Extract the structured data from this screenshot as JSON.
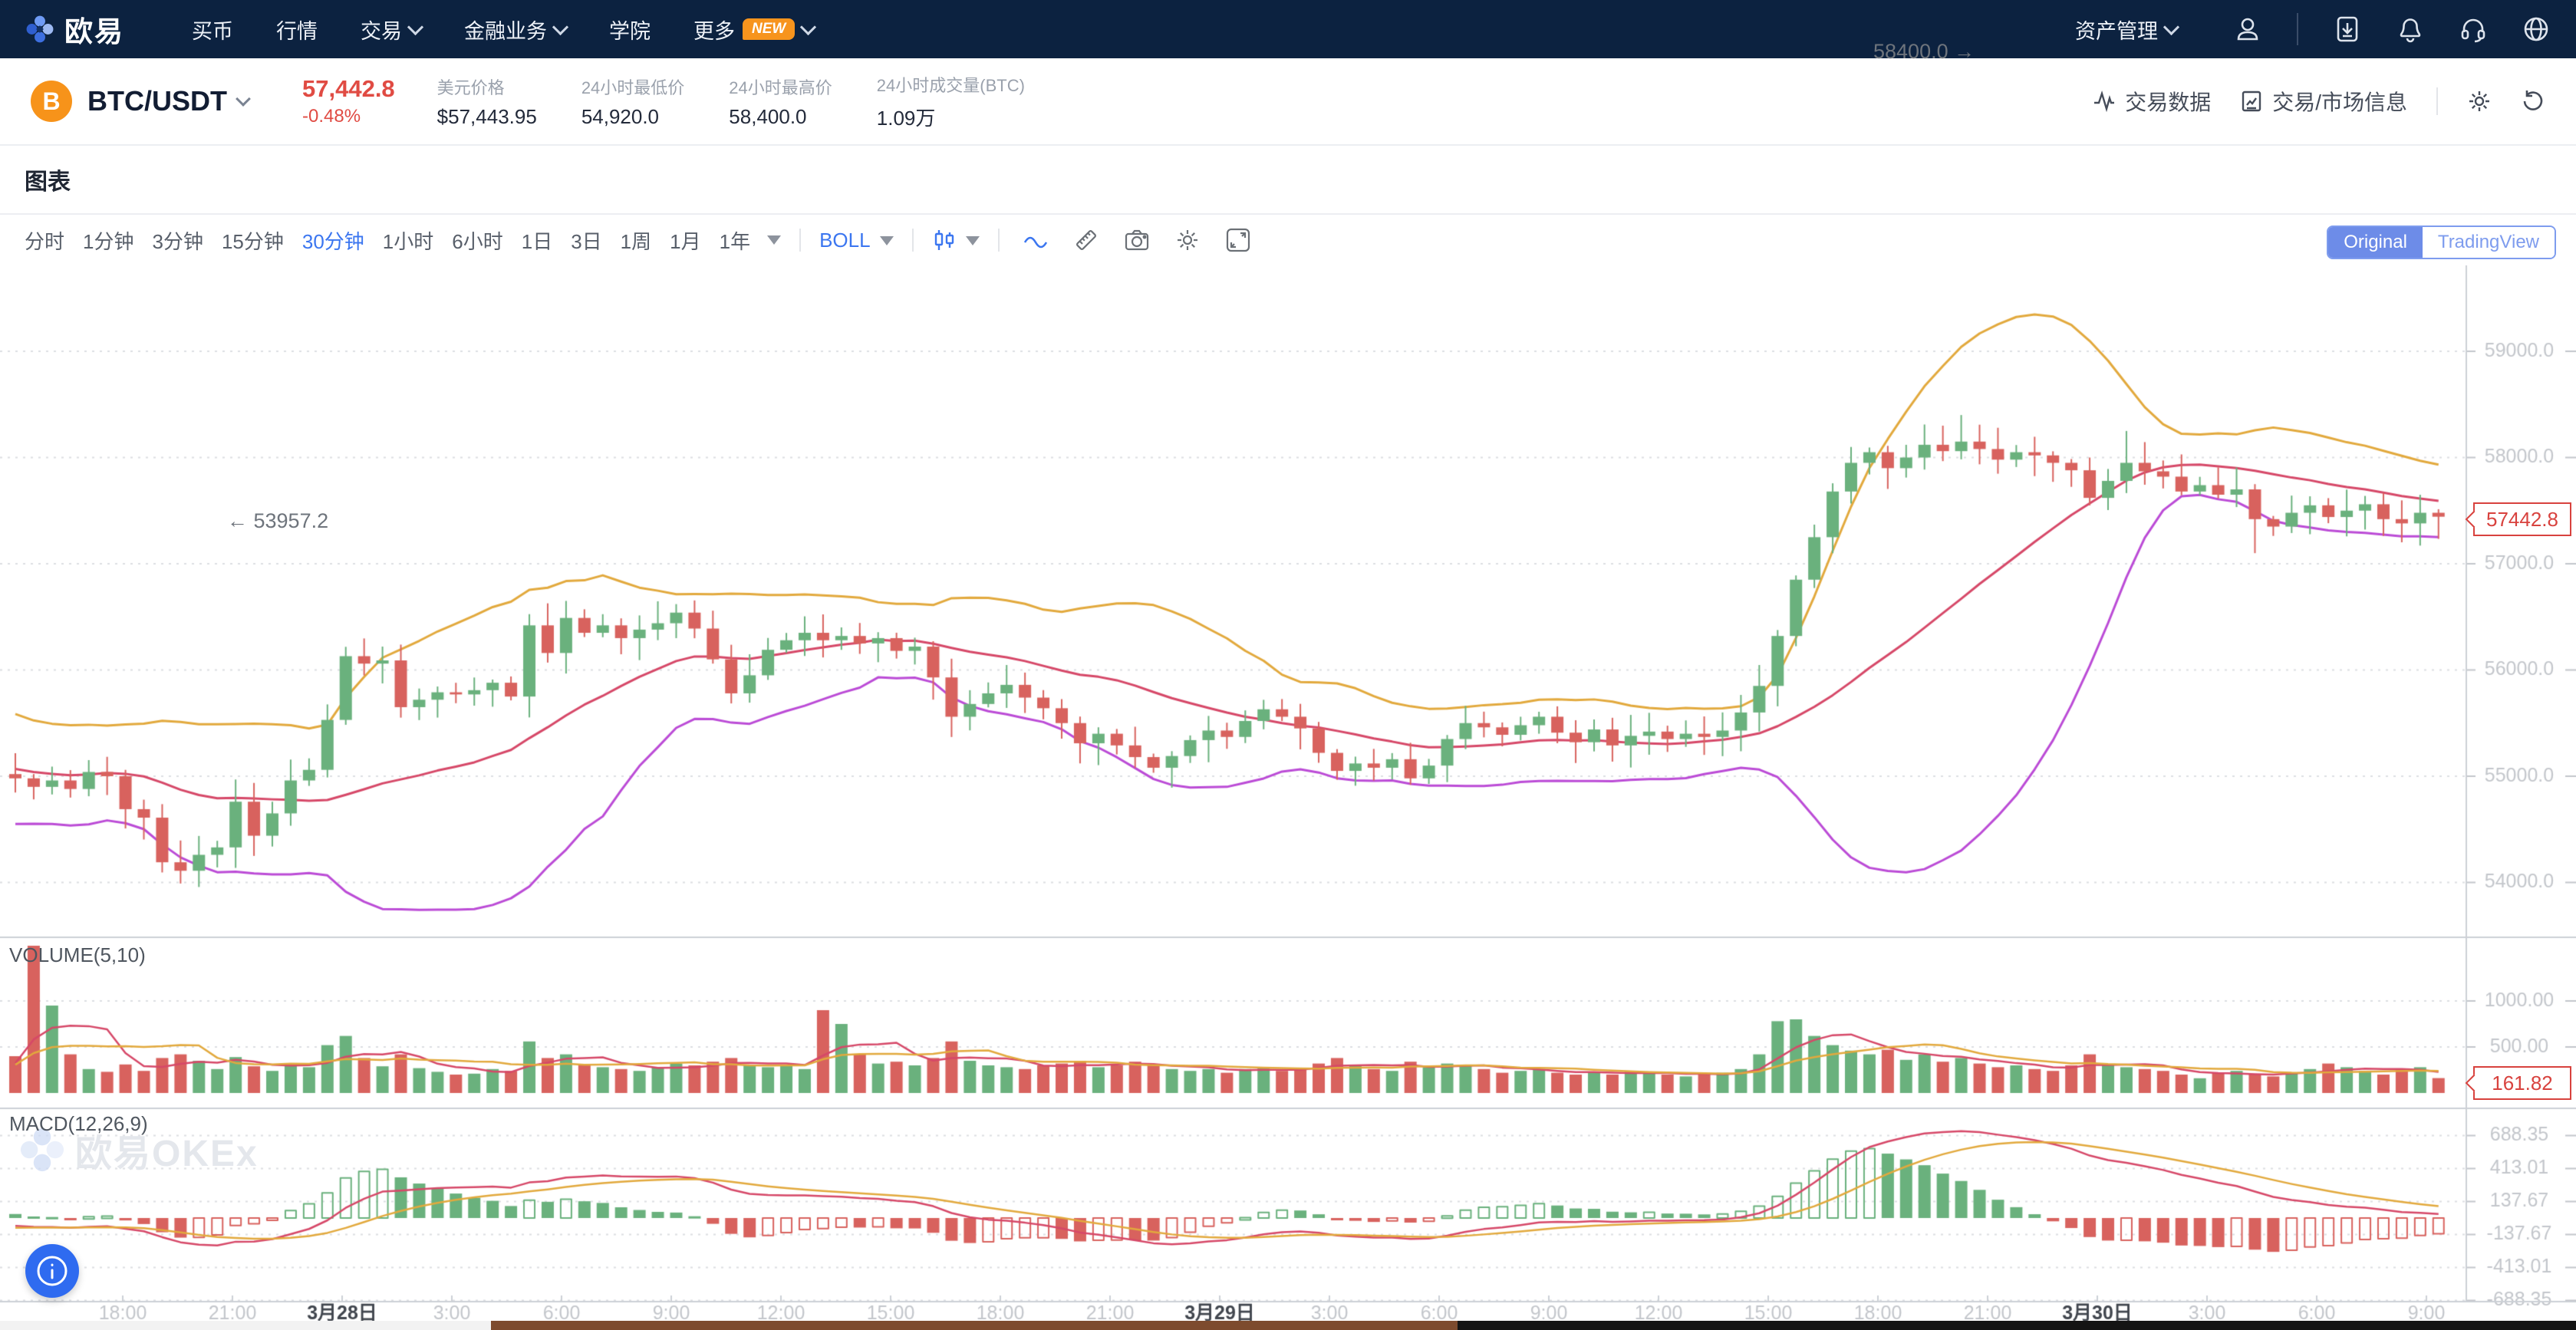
{
  "nav": {
    "brand": "欧易",
    "items": [
      {
        "label": "买币"
      },
      {
        "label": "行情"
      },
      {
        "label": "交易",
        "caret": true
      },
      {
        "label": "金融业务",
        "caret": true
      },
      {
        "label": "学院"
      },
      {
        "label": "更多",
        "badge": "NEW",
        "caret": true
      }
    ],
    "right_label": "资产管理",
    "icons": [
      "user-icon",
      "download-icon",
      "bell-icon",
      "headset-icon",
      "globe-icon"
    ]
  },
  "ticker": {
    "coin_symbol": "B",
    "pair": "BTC/USDT",
    "price": "57,442.8",
    "change": "-0.48%",
    "stats": [
      {
        "label": "美元价格",
        "value": "$57,443.95"
      },
      {
        "label": "24小时最低价",
        "value": "54,920.0"
      },
      {
        "label": "24小时最高价",
        "value": "58,400.0"
      },
      {
        "label": "24小时成交量(BTC)",
        "value": "1.09万"
      }
    ],
    "links": [
      {
        "label": "交易数据",
        "icon": "pulse-icon"
      },
      {
        "label": "交易/市场信息",
        "icon": "doc-icon"
      }
    ]
  },
  "section": {
    "title": "图表"
  },
  "toolbar": {
    "timeframes": [
      "分时",
      "1分钟",
      "3分钟",
      "15分钟",
      "30分钟",
      "1小时",
      "6小时",
      "1日",
      "3日",
      "1周",
      "1月",
      "1年"
    ],
    "selected_timeframe": "30分钟",
    "indicator": "BOLL",
    "toggle": {
      "original": "Original",
      "tradingview": "TradingView"
    }
  },
  "chart": {
    "watermark": "欧易OKEx",
    "annotation_high": "58400.0 →",
    "annotation_low": "← 53957.2",
    "price_badge": "57442.8",
    "volume_badge": "161.82",
    "volume_label": "VOLUME(5,10)",
    "macd_label": "MACD(12,26,9)",
    "price_ticks": [
      "59000.0",
      "58000.0",
      "57000.0",
      "56000.0",
      "55000.0",
      "54000.0"
    ],
    "volume_ticks": [
      "1000.00",
      "500.00"
    ],
    "macd_ticks": [
      "688.35",
      "413.01",
      "137.67",
      "-137.67",
      "-413.01",
      "-688.35"
    ],
    "time_labels": [
      {
        "t": "18:00"
      },
      {
        "t": "21:00"
      },
      {
        "t": "3月28日",
        "d": 1
      },
      {
        "t": "3:00"
      },
      {
        "t": "6:00"
      },
      {
        "t": "9:00"
      },
      {
        "t": "12:00"
      },
      {
        "t": "15:00"
      },
      {
        "t": "18:00"
      },
      {
        "t": "21:00"
      },
      {
        "t": "3月29日",
        "d": 1
      },
      {
        "t": "3:00"
      },
      {
        "t": "6:00"
      },
      {
        "t": "9:00"
      },
      {
        "t": "12:00"
      },
      {
        "t": "15:00"
      },
      {
        "t": "18:00"
      },
      {
        "t": "21:00"
      },
      {
        "t": "3月30日",
        "d": 1
      },
      {
        "t": "3:00"
      },
      {
        "t": "6:00"
      },
      {
        "t": "9:00"
      }
    ]
  },
  "chart_data": {
    "type": "candlestick",
    "interval": "30分钟",
    "indicators": [
      "BOLL(20,2)",
      "VOLUME MA(5,10)",
      "MACD(12,26,9)"
    ],
    "ylim_price": [
      53480,
      59810
    ],
    "first_open": 55020,
    "prehistory_closes": [
      55420,
      55480,
      55300,
      55150,
      54900,
      54700,
      54850,
      55100,
      55350,
      55450,
      55250,
      54950,
      54700,
      54550,
      54800,
      55050,
      55250,
      55380,
      55150,
      55020
    ],
    "prehistory_volumes": [
      300,
      280,
      320,
      350,
      400,
      380,
      300,
      280,
      260,
      300,
      320,
      340,
      300,
      280,
      260,
      280,
      300,
      320,
      300,
      290
    ],
    "closes": [
      54980,
      54900,
      54960,
      54880,
      55040,
      55000,
      54690,
      54610,
      54190,
      54110,
      54260,
      54330,
      54760,
      54440,
      54650,
      54960,
      55060,
      55530,
      56130,
      56060,
      56090,
      55650,
      55720,
      55790,
      55770,
      55810,
      55880,
      55750,
      56420,
      56160,
      56490,
      56350,
      56420,
      56300,
      56380,
      56440,
      56540,
      56390,
      56100,
      55780,
      55950,
      56190,
      56280,
      56350,
      56280,
      56320,
      56250,
      56300,
      56180,
      56220,
      55930,
      55560,
      55680,
      55780,
      55860,
      55740,
      55640,
      55500,
      55310,
      55400,
      55290,
      55180,
      55080,
      55190,
      55340,
      55430,
      55370,
      55520,
      55630,
      55560,
      55450,
      55220,
      55050,
      55120,
      55080,
      55160,
      54980,
      55100,
      55350,
      55500,
      55460,
      55390,
      55480,
      55560,
      55410,
      55320,
      55440,
      55290,
      55380,
      55420,
      55350,
      55400,
      55370,
      55430,
      55600,
      55850,
      56320,
      56850,
      57250,
      57680,
      57950,
      58050,
      57900,
      58000,
      58120,
      58060,
      58150,
      58080,
      57980,
      58050,
      58020,
      57950,
      57880,
      57620,
      57780,
      57950,
      57870,
      57820,
      57680,
      57740,
      57650,
      57700,
      57420,
      57350,
      57480,
      57550,
      57440,
      57500,
      57560,
      57420,
      57380,
      57480,
      57442.8
    ],
    "volumes": [
      400,
      1600,
      950,
      420,
      260,
      230,
      310,
      240,
      380,
      420,
      350,
      260,
      390,
      290,
      240,
      310,
      280,
      520,
      620,
      380,
      290,
      420,
      270,
      230,
      200,
      210,
      260,
      240,
      560,
      380,
      420,
      300,
      280,
      260,
      240,
      280,
      320,
      300,
      340,
      380,
      300,
      280,
      300,
      260,
      900,
      750,
      420,
      320,
      340,
      300,
      380,
      560,
      350,
      300,
      280,
      260,
      300,
      320,
      350,
      280,
      300,
      340,
      300,
      260,
      240,
      260,
      220,
      260,
      280,
      240,
      260,
      320,
      380,
      300,
      260,
      240,
      340,
      280,
      320,
      300,
      260,
      220,
      240,
      260,
      220,
      200,
      220,
      200,
      240,
      220,
      200,
      180,
      200,
      220,
      260,
      420,
      780,
      800,
      620,
      520,
      460,
      420,
      470,
      360,
      420,
      340,
      380,
      320,
      280,
      300,
      260,
      240,
      300,
      420,
      300,
      280,
      260,
      240,
      200,
      160,
      220,
      240,
      200,
      180,
      220,
      260,
      320,
      280,
      240,
      200,
      260,
      280,
      161.82
    ],
    "wick_overrides": {
      "9": {
        "low": 53990
      },
      "10": {
        "low": 53957.2
      },
      "36": {
        "high": 56620
      },
      "76": {
        "low": 54920
      },
      "100": {
        "high": 58100
      },
      "105": {
        "high": 58300
      },
      "106": {
        "high": 58400
      },
      "115": {
        "high": 58250
      },
      "122": {
        "low": 57100
      }
    },
    "colors": {
      "up": "#6ab17d",
      "down": "#d8625e",
      "boll_upper": "#e2a93d",
      "boll_mid": "#d64868",
      "boll_lower": "#bb4bd6",
      "macd_dif": "#d64868",
      "macd_dea": "#e2a93d",
      "grid": "#dcdee2",
      "axis_text": "#c3c6cb",
      "axis_date": "#41464e",
      "divider": "#ccd0d6",
      "badge": "#d8423e",
      "accent_blue": "#3b76f0"
    }
  }
}
